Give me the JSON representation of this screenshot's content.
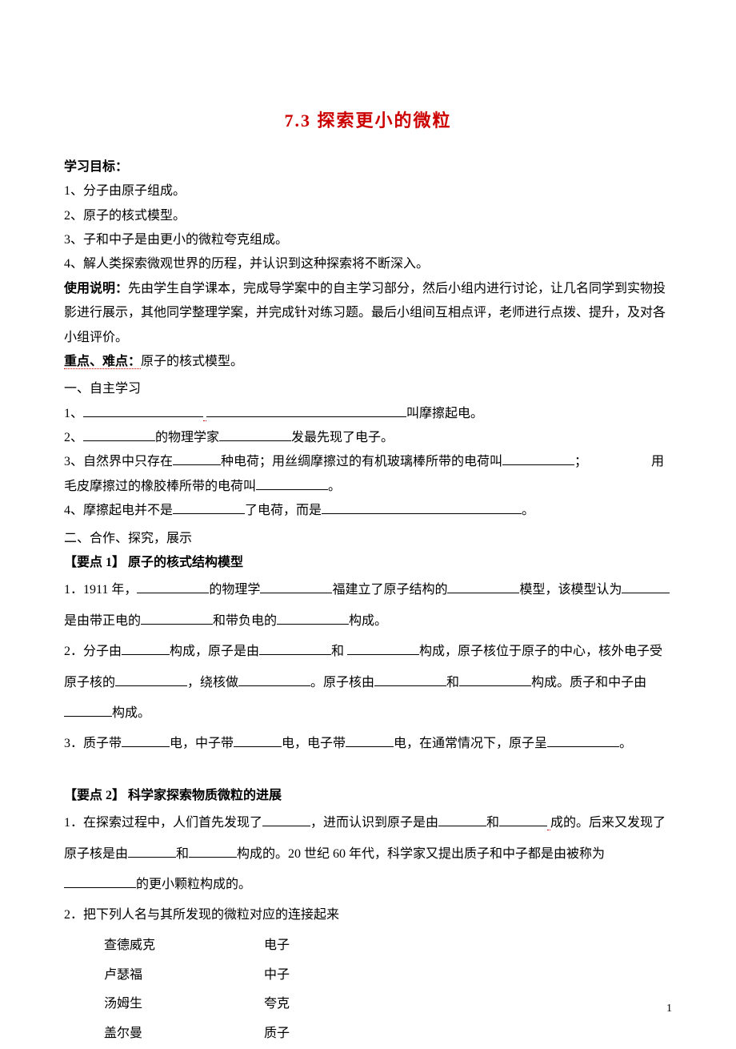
{
  "title": "7.3 探索更小的微粒",
  "objectives": {
    "heading": "学习目标：",
    "items": [
      "1、分子由原子组成。",
      "2、原子的核式模型。",
      "3、子和中子是由更小的微粒夸克组成。",
      "4、解人类探索微观世界的历程，并认识到这种探索将不断深入。"
    ]
  },
  "instructions": {
    "heading": "使用说明：",
    "text": "先由学生自学课本，完成导学案中的自主学习部分，然后小组内进行讨论，让几名同学到实物投影进行展示，其他同学整理学案，并完成针对练习题。最后小组间互相点评，老师进行点拨、提升，及对各小组评价。"
  },
  "keypoints": {
    "heading": "重点、难点：",
    "text": "原子的核式模型。"
  },
  "section1": {
    "heading": "一、自主学习",
    "q1_prefix": "1、",
    "q1_suffix": "叫摩擦起电。",
    "q2_prefix": "2、",
    "q2_mid": "的物理学家",
    "q2_suffix": "发最先现了电子。",
    "q3_prefix": "3、自然界中只存在",
    "q3_mid1": "种电荷；用丝绸摩擦过的有机玻璃棒所带的电荷叫",
    "q3_mid1b": "；",
    "q3_mid2": "用毛皮摩擦过的橡胶棒所带的电荷叫",
    "q3_suffix": "。",
    "q4_prefix": "4、摩擦起电并不是",
    "q4_mid": "了电荷，而是",
    "q4_suffix": "。"
  },
  "section2": {
    "heading": "二、合作、探究，展示",
    "point1_heading": "【要点 1】 原子的核式结构模型",
    "p1_1a": "1．1911 年，",
    "p1_1b": "的物理学",
    "p1_1c": "福建立了原子结构的",
    "p1_1d": "模型，该模型认为",
    "p1_1e": "是由带正电的",
    "p1_1f": "和带负电的",
    "p1_1g": "构成。",
    "p1_2a": "2．分子由",
    "p1_2b": "构成，原子是由",
    "p1_2c": "和",
    "p1_2d": "构成，原子核位于原子的中心，核外电子受原子核的",
    "p1_2e": "，绕核做",
    "p1_2f": "。原子核由",
    "p1_2g": "和",
    "p1_2h": "构成。质子和中子由",
    "p1_2i": "构成。",
    "p1_3a": "3．质子带",
    "p1_3b": "电，中子带",
    "p1_3c": "电，电子带",
    "p1_3d": "电，在通常情况下，原子呈",
    "p1_3e": "。",
    "point2_heading": "【要点 2】 科学家探索物质微粒的进展",
    "p2_1a": "1．在探索过程中，人们首先发现了",
    "p2_1b": "，进而认识到原子是由",
    "p2_1c": "和",
    "p2_1d": "成的。后来又发现了原子核是由",
    "p2_1e": "和",
    "p2_1f": "构成的。20 世纪 60 年代，科学家又提出质子和中子都是由被称为",
    "p2_1g": "的更小颗粒构成的。",
    "p2_2": "2．把下列人名与其所发现的微粒对应的连接起来",
    "match": [
      {
        "name": "查德威克",
        "particle": "电子"
      },
      {
        "name": "卢瑟福",
        "particle": "中子"
      },
      {
        "name": "汤姆生",
        "particle": "夸克"
      },
      {
        "name": "盖尔曼",
        "particle": "质子"
      }
    ]
  },
  "page_num": "1",
  "colors": {
    "title_color": "#cc0000",
    "text_color": "#000000",
    "bg_color": "#ffffff"
  }
}
